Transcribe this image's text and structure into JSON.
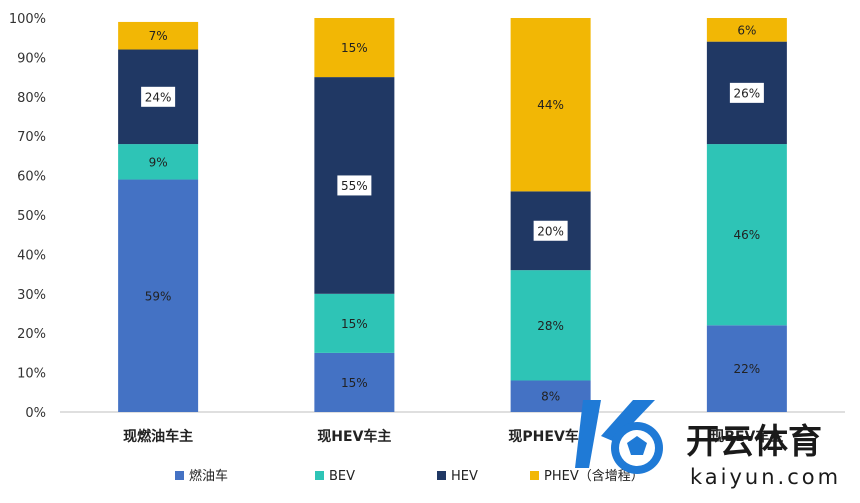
{
  "chart_data": {
    "type": "bar",
    "stacked": true,
    "categories": [
      "现燃油车主",
      "现HEV车主",
      "现PHEV车主",
      "现BEV车主"
    ],
    "series": [
      {
        "name": "燃油车",
        "color": "#4472C4",
        "values": [
          59,
          15,
          8,
          22
        ]
      },
      {
        "name": "BEV",
        "color": "#2EC4B6",
        "values": [
          9,
          15,
          28,
          46
        ]
      },
      {
        "name": "HEV",
        "color": "#203864",
        "values": [
          24,
          55,
          20,
          26
        ]
      },
      {
        "name": "PHEV（含增程）",
        "color": "#F2B705",
        "values": [
          7,
          15,
          44,
          6
        ]
      }
    ],
    "data_labels": [
      [
        "59%",
        "9%",
        "24%",
        "7%"
      ],
      [
        "15%",
        "15%",
        "55%",
        "15%"
      ],
      [
        "8%",
        "28%",
        "20%",
        "44%"
      ],
      [
        "22%",
        "46%",
        "26%",
        "6%"
      ]
    ],
    "yticks": [
      "0%",
      "10%",
      "20%",
      "30%",
      "40%",
      "50%",
      "60%",
      "70%",
      "80%",
      "90%",
      "100%"
    ],
    "ylim": [
      0,
      100
    ],
    "grid": false,
    "legend_position": "bottom"
  },
  "watermark": {
    "brand": "开云体育",
    "url": "kaiyun.com"
  }
}
